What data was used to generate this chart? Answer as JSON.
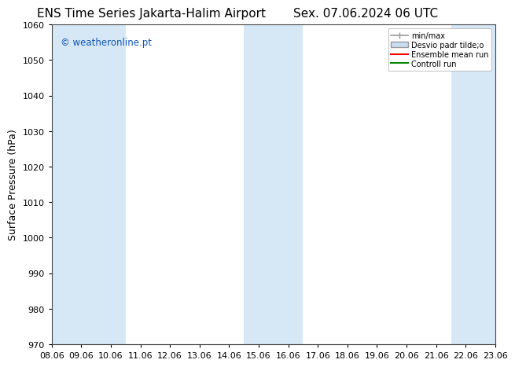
{
  "title_left": "ENS Time Series Jakarta-Halim Airport",
  "title_right": "Sex. 07.06.2024 06 UTC",
  "ylabel": "Surface Pressure (hPa)",
  "ylim": [
    970,
    1060
  ],
  "yticks": [
    970,
    980,
    990,
    1000,
    1010,
    1020,
    1030,
    1040,
    1050,
    1060
  ],
  "xtick_labels": [
    "08.06",
    "09.06",
    "10.06",
    "11.06",
    "12.06",
    "13.06",
    "14.06",
    "15.06",
    "16.06",
    "17.06",
    "18.06",
    "19.06",
    "20.06",
    "21.06",
    "22.06",
    "23.06"
  ],
  "watermark": "© weatheronline.pt",
  "watermark_color": "#1155bb",
  "bg_color": "#ffffff",
  "plot_bg_color": "#ffffff",
  "shaded_band_color": "#d6e8f5",
  "shaded_columns": [
    0,
    1,
    2,
    7,
    8,
    14,
    15
  ],
  "legend_minmax_color": "#999999",
  "legend_std_color": "#c8ddf0",
  "legend_ensemble_color": "#ff0000",
  "legend_control_color": "#008800",
  "title_fontsize": 11,
  "label_fontsize": 9,
  "tick_fontsize": 8,
  "border_color": "#888888"
}
